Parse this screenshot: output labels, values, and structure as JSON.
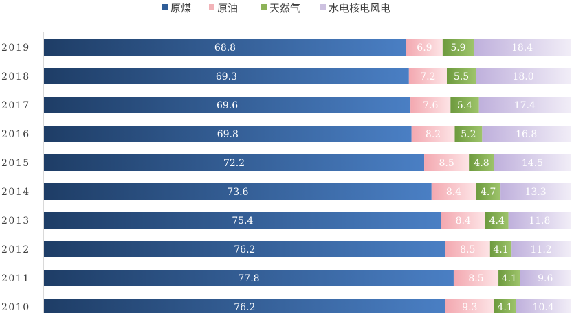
{
  "chart_data": {
    "type": "bar",
    "orientation": "horizontal",
    "stacked": true,
    "grid": false,
    "legend_position": "top",
    "categories": [
      "2019",
      "2018",
      "2017",
      "2016",
      "2015",
      "2014",
      "2013",
      "2012",
      "2011",
      "2010"
    ],
    "series": [
      {
        "name": "原煤",
        "color": "#2f5d98",
        "values": [
          68.8,
          69.3,
          69.6,
          69.8,
          72.2,
          73.6,
          75.4,
          76.2,
          77.8,
          76.2
        ]
      },
      {
        "name": "原油",
        "color": "#f2b3b8",
        "values": [
          6.9,
          7.2,
          7.6,
          8.2,
          8.5,
          8.4,
          8.4,
          8.5,
          8.5,
          9.3
        ]
      },
      {
        "name": "天然气",
        "color": "#8db358",
        "values": [
          5.9,
          5.5,
          5.4,
          5.2,
          4.8,
          4.7,
          4.4,
          4.1,
          4.1,
          4.1
        ]
      },
      {
        "name": "水电核电风电",
        "color": "#cdc1e0",
        "values": [
          18.4,
          18.0,
          17.4,
          16.8,
          14.5,
          13.3,
          11.8,
          11.2,
          9.6,
          10.4
        ]
      }
    ],
    "xlim": [
      0,
      100
    ]
  }
}
